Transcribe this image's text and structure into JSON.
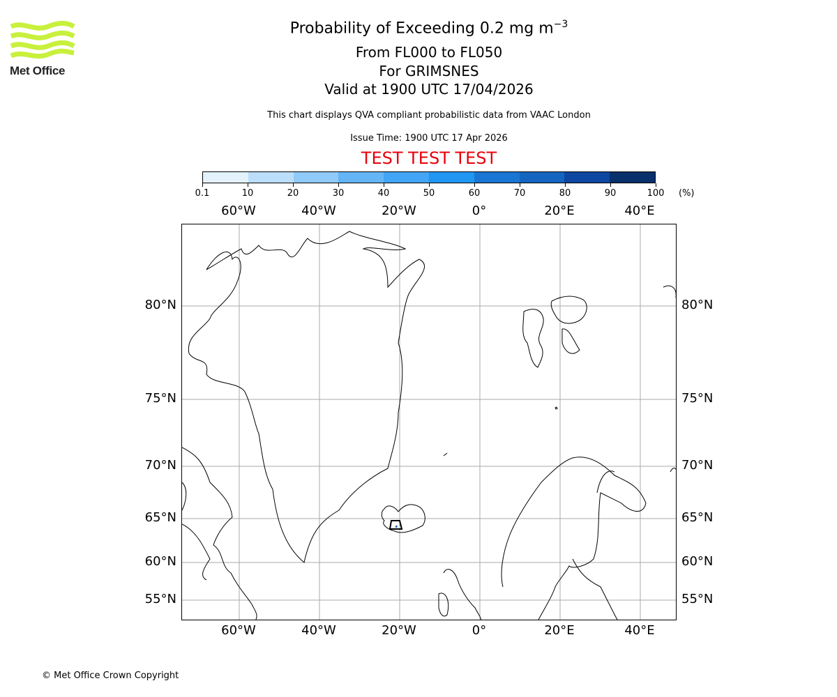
{
  "logo": {
    "name": "Met Office",
    "color": "#c8f03c"
  },
  "titles": {
    "main": "Probability of Exceeding 0.2 mg m",
    "main_superscript": "−3",
    "flight_levels": "From FL000 to FL050",
    "volcano": "For GRIMSNES",
    "valid": "Valid at 1900 UTC 17/04/2026",
    "description": "This chart displays QVA compliant probabilistic data from VAAC London",
    "issue_time": "Issue Time: 1900 UTC 17 Apr 2026",
    "test_banner": "TEST TEST TEST"
  },
  "colorbar": {
    "ticks": [
      "0.1",
      "10",
      "20",
      "30",
      "40",
      "50",
      "60",
      "70",
      "80",
      "90",
      "100"
    ],
    "unit": "(%)",
    "colors": [
      "#e3f2fd",
      "#bbdefb",
      "#90caf9",
      "#64b5f6",
      "#42a5f5",
      "#2196f3",
      "#1976d2",
      "#1565c0",
      "#0d47a1",
      "#08306b"
    ]
  },
  "map": {
    "lon_labels": [
      "60°W",
      "40°W",
      "20°W",
      "0°",
      "20°E",
      "40°E"
    ],
    "lat_labels": [
      "80°N",
      "75°N",
      "70°N",
      "65°N",
      "60°N",
      "55°N"
    ],
    "gridline_color": "#aaaaaa",
    "volcano_marker_color": "#1565c0"
  },
  "chart_data": {
    "type": "heatmap",
    "title": "Probability of Exceeding 0.2 mg m-3, From FL000 to FL050, For GRIMSNES, Valid at 1900 UTC 17/04/2026",
    "subtitle": "This chart displays QVA compliant probabilistic data from VAAC London; Issue Time: 1900 UTC 17 Apr 2026",
    "annotation": "TEST TEST TEST",
    "colorbar_bins": [
      0.1,
      10,
      20,
      30,
      40,
      50,
      60,
      70,
      80,
      90,
      100
    ],
    "colorbar_unit": "%",
    "x_ticks": [
      "60°W",
      "40°W",
      "20°W",
      "0°",
      "20°E",
      "40°E"
    ],
    "y_ticks": [
      "80°N",
      "75°N",
      "70°N",
      "65°N",
      "60°N",
      "55°N"
    ],
    "grid": true,
    "data": "No significant probability area shown; only a tiny marker at Grimsnes, Iceland (~64N, 20W)"
  },
  "footer": {
    "copyright": "© Met Office Crown Copyright"
  }
}
